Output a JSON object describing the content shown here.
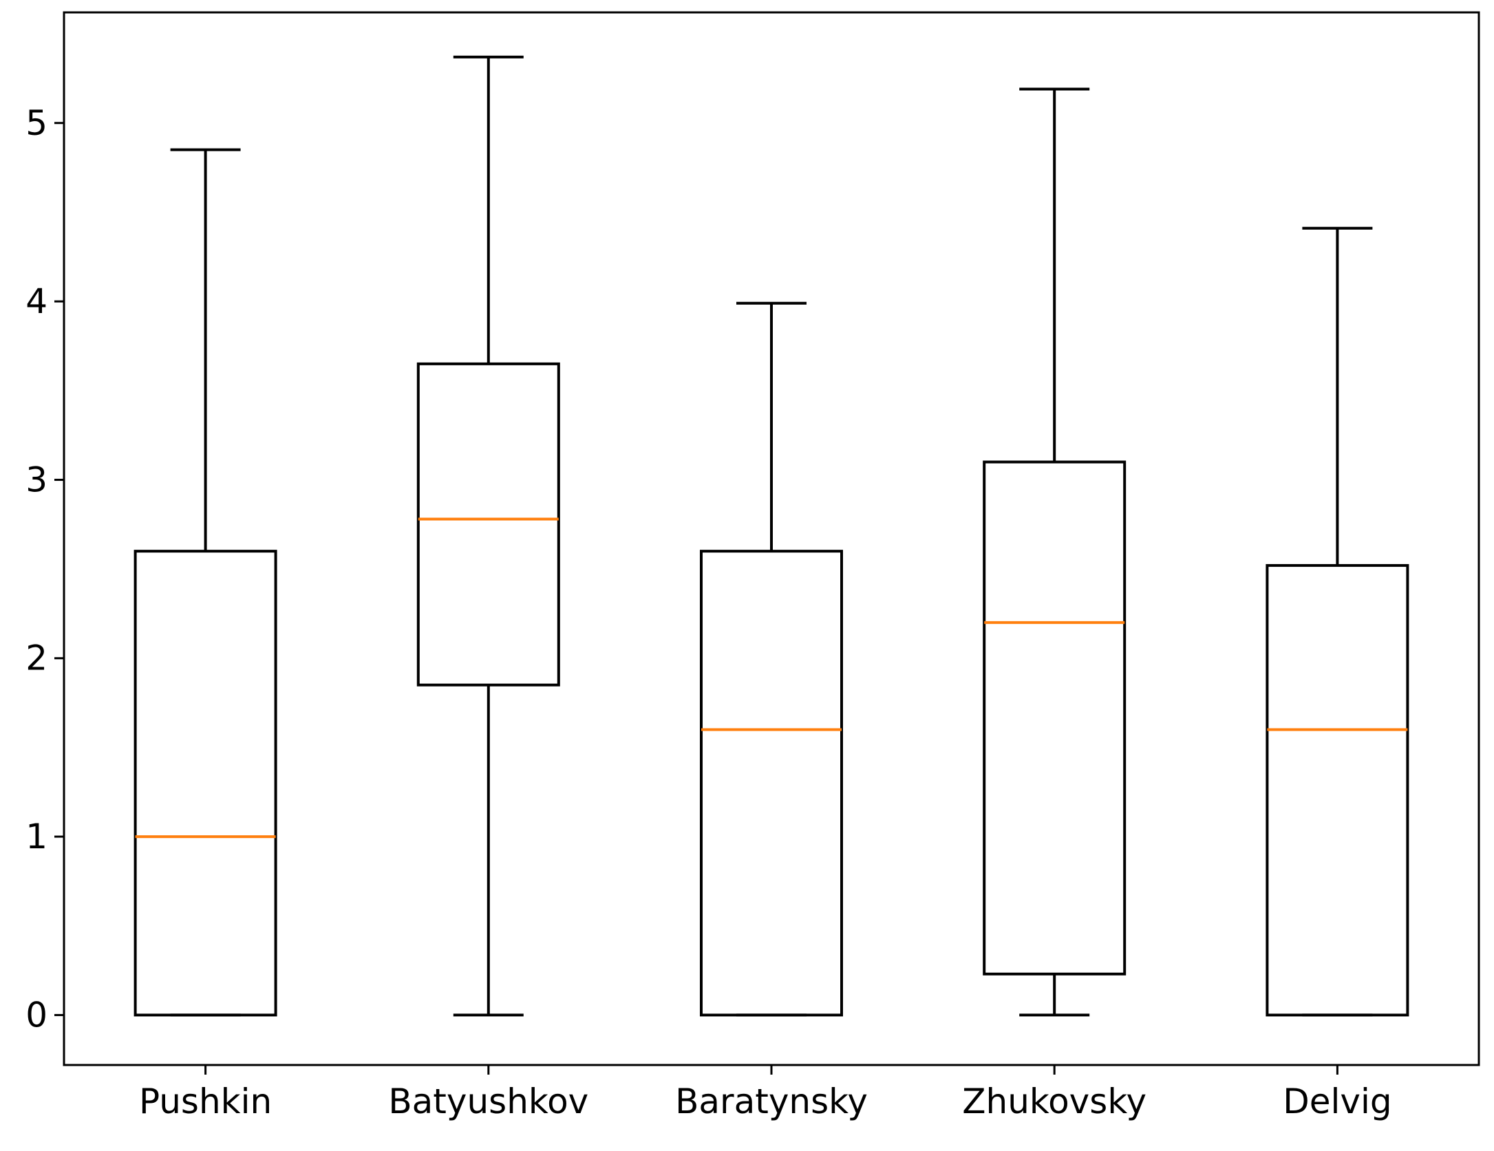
{
  "chart_data": {
    "type": "box",
    "title": "",
    "xlabel": "",
    "ylabel": "",
    "ylim": [
      -0.28,
      5.62
    ],
    "yticks": [
      0,
      1,
      2,
      3,
      4,
      5
    ],
    "categories": [
      "Pushkin",
      "Batyushkov",
      "Baratynsky",
      "Zhukovsky",
      "Delvig"
    ],
    "boxes": [
      {
        "name": "Pushkin",
        "whisker_low": 0,
        "q1": 0,
        "median": 1.0,
        "q3": 2.6,
        "whisker_high": 4.85
      },
      {
        "name": "Batyushkov",
        "whisker_low": 0,
        "q1": 1.85,
        "median": 2.78,
        "q3": 3.65,
        "whisker_high": 5.37
      },
      {
        "name": "Baratynsky",
        "whisker_low": 0,
        "q1": 0,
        "median": 1.6,
        "q3": 2.6,
        "whisker_high": 3.99
      },
      {
        "name": "Zhukovsky",
        "whisker_low": 0,
        "q1": 0.23,
        "median": 2.2,
        "q3": 3.1,
        "whisker_high": 5.19
      },
      {
        "name": "Delvig",
        "whisker_low": 0,
        "q1": 0,
        "median": 1.6,
        "q3": 2.52,
        "whisker_high": 4.41
      }
    ],
    "grid": false,
    "colors": {
      "box": "#000000",
      "median": "#ff7f0e",
      "background": "#ffffff"
    }
  }
}
